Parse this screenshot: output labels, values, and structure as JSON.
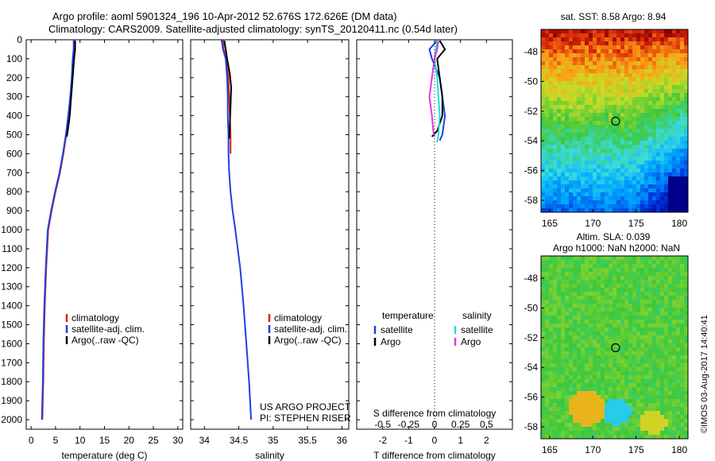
{
  "title": {
    "line1": "Argo profile: aoml 5901324_196 10-Apr-2012 52.676S 172.626E (DM data)",
    "line2": "Climatology: CARS2009. Satellite-adjusted climatology: synTS_20120411.nc (0.54d later)"
  },
  "credit": "©IMOS 03-Aug-2017 14:40:41",
  "project": {
    "line1": "US ARGO PROJECT",
    "line2": "PI: STEPHEN RISER"
  },
  "colors": {
    "climatology": "#dd2222",
    "satellite": "#1f3fe0",
    "argo": "#000000",
    "salinity_satellite": "#22dddd",
    "salinity_argo": "#e03cd8"
  },
  "chart_data": [
    {
      "type": "line",
      "name": "temperature-panel",
      "xlabel": "temperature (deg C)",
      "ylabel": "",
      "xlim": [
        -1,
        31
      ],
      "ylim": [
        2050,
        0
      ],
      "x_ticks": [
        0,
        5,
        10,
        15,
        20,
        25,
        30
      ],
      "y_ticks": [
        0,
        100,
        200,
        300,
        400,
        500,
        600,
        700,
        800,
        900,
        1000,
        1100,
        1200,
        1300,
        1400,
        1500,
        1600,
        1700,
        1800,
        1900,
        2000
      ],
      "legend": [
        "climatology",
        "satellite-adj. clim.",
        "Argo(..raw -QC)"
      ],
      "legend_position": "bottom-center",
      "series": [
        {
          "name": "climatology",
          "color_key": "climatology",
          "x": [
            8.9,
            8.8,
            8.6,
            8.4,
            8.1,
            7.6,
            7.2,
            6.6,
            5.9,
            5.0,
            4.2,
            3.5,
            3.1,
            2.8,
            2.6,
            2.5,
            2.4,
            2.3
          ],
          "y": [
            0,
            50,
            100,
            200,
            300,
            400,
            500,
            600,
            700,
            800,
            900,
            1000,
            1200,
            1400,
            1600,
            1800,
            1900,
            2000
          ]
        },
        {
          "name": "satellite-adj. clim.",
          "color_key": "satellite",
          "x": [
            8.7,
            8.7,
            8.5,
            8.3,
            8.0,
            7.6,
            7.1,
            6.5,
            5.8,
            4.9,
            4.1,
            3.4,
            3.0,
            2.7,
            2.5,
            2.4,
            2.3,
            2.2
          ],
          "y": [
            0,
            50,
            100,
            200,
            300,
            400,
            500,
            600,
            700,
            800,
            900,
            1000,
            1200,
            1400,
            1600,
            1800,
            1900,
            2000
          ]
        },
        {
          "name": "Argo(..raw -QC)",
          "color_key": "argo",
          "x": [
            9.0,
            9.0,
            8.8,
            8.5,
            8.2,
            7.9,
            7.5,
            7.3
          ],
          "y": [
            5,
            50,
            100,
            200,
            300,
            400,
            480,
            510
          ]
        }
      ]
    },
    {
      "type": "line",
      "name": "salinity-panel",
      "xlabel": "salinity",
      "ylabel": "",
      "xlim": [
        33.8,
        36.1
      ],
      "ylim": [
        2050,
        0
      ],
      "x_ticks": [
        34,
        34.5,
        35,
        35.5,
        36
      ],
      "x_tick_labels": [
        "34",
        "34.5",
        "35",
        "35.5",
        "36"
      ],
      "legend": [
        "climatology",
        "satellite-adj. clim.",
        "Argo(..raw -QC)"
      ],
      "legend_position": "bottom-right",
      "series": [
        {
          "name": "climatology",
          "color_key": "climatology",
          "x": [
            34.27,
            34.28,
            34.32,
            34.35,
            34.36,
            34.37,
            34.38,
            34.38
          ],
          "y": [
            0,
            50,
            100,
            200,
            300,
            400,
            500,
            600
          ]
        },
        {
          "name": "satellite-adj. clim.",
          "color_key": "satellite",
          "x": [
            34.25,
            34.27,
            34.31,
            34.33,
            34.34,
            34.34,
            34.35,
            34.35,
            34.36,
            34.38,
            34.41,
            34.45,
            34.52,
            34.57,
            34.61,
            34.65,
            34.68
          ],
          "y": [
            0,
            50,
            100,
            200,
            300,
            400,
            500,
            600,
            700,
            800,
            900,
            1000,
            1200,
            1400,
            1600,
            1800,
            2000
          ]
        },
        {
          "name": "Argo(..raw -QC)",
          "color_key": "argo",
          "x": [
            34.29,
            34.31,
            34.33,
            34.37,
            34.39,
            34.38,
            34.37,
            34.36
          ],
          "y": [
            5,
            50,
            100,
            180,
            250,
            350,
            450,
            520
          ]
        }
      ]
    },
    {
      "type": "line",
      "name": "difference-panel",
      "xlabel": "T difference from climatology",
      "xlabel2": "S difference from climatology",
      "xlim": [
        -3,
        3
      ],
      "ylim": [
        2050,
        0
      ],
      "x_ticks": [
        -2,
        -1,
        0,
        1,
        2
      ],
      "x_tick_labels": [
        "-2",
        "-1",
        "0",
        "1",
        "2"
      ],
      "x2_tick_labels": [
        "-0.5",
        "-0.25",
        "0",
        "0.25",
        "0.5"
      ],
      "legend": [
        "temperature",
        "satellite",
        "Argo",
        "salinity",
        "satellite",
        "Argo"
      ],
      "legend_position": "bottom",
      "series": [
        {
          "name": "temperature satellite",
          "color_key": "satellite",
          "x": [
            0.1,
            -0.2,
            -0.1,
            0.2,
            0.3,
            0.4,
            0.3,
            0.2
          ],
          "y": [
            5,
            50,
            100,
            200,
            300,
            400,
            500,
            530
          ]
        },
        {
          "name": "temperature Argo",
          "color_key": "argo",
          "x": [
            0.2,
            0.4,
            0.1,
            0.2,
            0.3,
            0.3,
            0.1,
            -0.1
          ],
          "y": [
            5,
            50,
            100,
            200,
            300,
            400,
            480,
            510
          ]
        },
        {
          "name": "salinity satellite",
          "color_key": "salinity_satellite",
          "x": [
            0.1,
            0.05,
            0.0,
            0.1,
            0.15,
            0.2,
            0.15,
            0.1
          ],
          "y": [
            5,
            50,
            100,
            200,
            300,
            400,
            500,
            540
          ]
        },
        {
          "name": "salinity Argo",
          "color_key": "salinity_argo",
          "x": [
            0.15,
            0.1,
            0.0,
            -0.1,
            -0.2,
            -0.1,
            -0.05,
            0.0
          ],
          "y": [
            5,
            50,
            100,
            200,
            300,
            400,
            480,
            510
          ]
        }
      ]
    },
    {
      "type": "heatmap",
      "name": "sst-map",
      "title": "sat. SST: 8.58 Argo: 8.94",
      "xlim": [
        164,
        181
      ],
      "ylim": [
        -58.8,
        -46.5
      ],
      "x_ticks": [
        165,
        170,
        175,
        180
      ],
      "y_ticks": [
        -48,
        -50,
        -52,
        -54,
        -56,
        -58
      ],
      "marker": {
        "lon": 172.626,
        "lat": -52.676
      }
    },
    {
      "type": "heatmap",
      "name": "sla-map",
      "title": "Altim. SLA: 0.039",
      "subtitle": "Argo h1000: NaN h2000: NaN",
      "xlim": [
        164,
        181
      ],
      "ylim": [
        -58.8,
        -46.5
      ],
      "x_ticks": [
        165,
        170,
        175,
        180
      ],
      "y_ticks": [
        -48,
        -50,
        -52,
        -54,
        -56,
        -58
      ],
      "marker": {
        "lon": 172.626,
        "lat": -52.676
      }
    }
  ]
}
